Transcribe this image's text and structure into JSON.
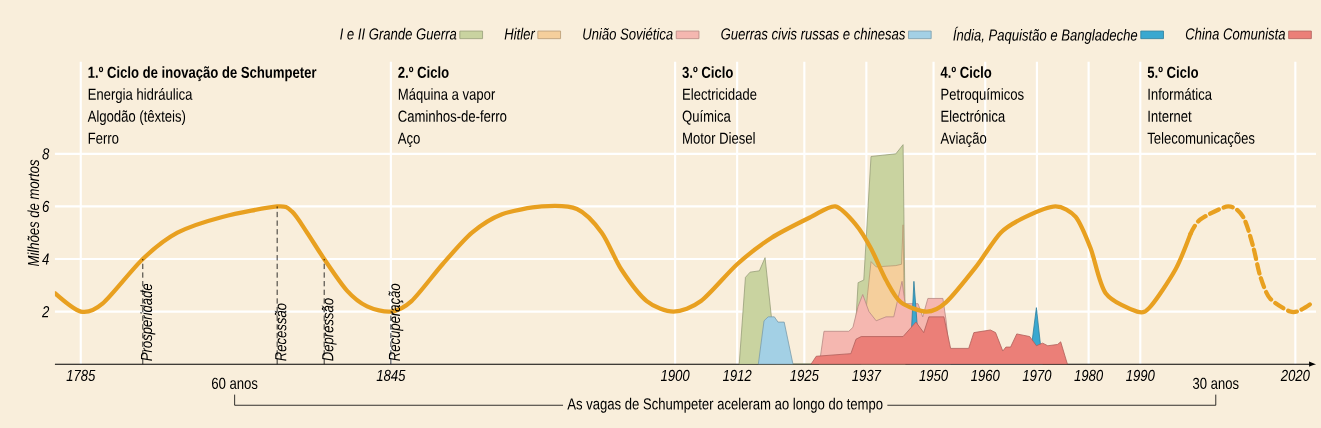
{
  "chart_data": {
    "type": "area",
    "ylabel": "Milhões de mortos",
    "xlabel": "As vagas de Schumpeter aceleram ao longo do tempo",
    "xlim": [
      1780,
      2024
    ],
    "ylim": [
      0,
      11.5
    ],
    "xticks": [
      1785,
      1845,
      1900,
      1912,
      1925,
      1937,
      1950,
      1960,
      1970,
      1980,
      1990,
      2020
    ],
    "yticks": [
      2,
      4,
      6,
      8
    ],
    "grid": true,
    "legend": "top right",
    "series": [
      {
        "name": "I e II Grande Guerra",
        "color": "#c9d3a0",
        "x": [
          1912.4,
          1913.6,
          1914.5,
          1916.3,
          1917.4,
          1919.6,
          1934.5,
          1935.4,
          1936.5,
          1937.9,
          1940.2,
          1942.7,
          1944.1,
          1944.6
        ],
        "values": [
          0,
          3.3,
          3.5,
          3.55,
          4.05,
          0,
          0,
          3.1,
          3.2,
          7.9,
          7.95,
          8.0,
          8.35,
          0
        ]
      },
      {
        "name": "Hitler",
        "color": "#f5cf9c",
        "x": [
          1936,
          1937.2,
          1937.9,
          1938.9,
          1942.7,
          1943.8,
          1944.1,
          1944.5
        ],
        "values": [
          0,
          2.6,
          3.9,
          3.7,
          3.75,
          3.8,
          5.3,
          0
        ]
      },
      {
        "name": "União Soviética",
        "color": "#f5b7b0",
        "x": [
          1927.9,
          1928.8,
          1933.6,
          1934.4,
          1935.4,
          1936.3,
          1937.5,
          1938.9,
          1940.8,
          1942.3,
          1943.9,
          1944.5,
          1947,
          1947.9,
          1948.9,
          1951.8,
          1952.4,
          1953.3
        ],
        "values": [
          0,
          1.25,
          1.25,
          1.4,
          2.2,
          2.65,
          2.0,
          1.65,
          1.8,
          1.8,
          3.15,
          2.3,
          2.3,
          1.8,
          2.5,
          2.5,
          1.7,
          0
        ]
      },
      {
        "name": "Guerras civis russas e chinesas",
        "color": "#a3d0e5",
        "x": [
          1916.1,
          1917.2,
          1918,
          1919.2,
          1919.9,
          1921.1,
          1922.8
        ],
        "values": [
          0,
          1.65,
          1.8,
          1.8,
          1.6,
          1.6,
          0
        ]
      },
      {
        "name": "Índia, Paquistão e Bangladeche",
        "color": "#3aa8d0",
        "x": [
          1945.4,
          1946.2,
          1947.4,
          1968.5,
          1969.9,
          1971.1
        ],
        "values": [
          0,
          3.15,
          0,
          0,
          2.15,
          0
        ]
      },
      {
        "name": "China Comunista",
        "color": "#eb7f78",
        "x": [
          1926.3,
          1927.3,
          1934,
          1935,
          1936,
          1944.1,
          1946.6,
          1948.1,
          1949.1,
          1952,
          1953.3,
          1956.8,
          1957.8,
          1961,
          1962,
          1963.4,
          1964,
          1964.9,
          1966.1,
          1968.6,
          1969.9,
          1971.1,
          1972.1,
          1974,
          1974.6,
          1975.9
        ],
        "values": [
          0,
          0.3,
          0.4,
          0.95,
          1.05,
          1.05,
          1.6,
          1.2,
          1.8,
          1.8,
          0.6,
          0.6,
          1.2,
          1.3,
          1.2,
          0.5,
          0.65,
          0.65,
          1.15,
          1.05,
          0.7,
          0.8,
          0.7,
          0.75,
          0.85,
          0
        ]
      },
      {
        "type": "line",
        "color": "#e8a020",
        "line_style": "solid",
        "x": [
          1780,
          1785,
          1789.2,
          1797,
          1803.7,
          1812.4,
          1823,
          1825.9,
          1828.8,
          1832.1,
          1836.5,
          1840.4,
          1845,
          1849,
          1855,
          1860.7,
          1866.5,
          1874.2,
          1881,
          1885.8,
          1889.6,
          1894.5,
          1899.7,
          1905,
          1912,
          1918.6,
          1926.3,
          1931,
          1935,
          1937.9,
          1940.8,
          1943.7,
          1948.7,
          1952.4,
          1958.2,
          1963,
          1967.8,
          1973.6,
          1977.5,
          1980.4,
          1983.3,
          1989.4,
          1992,
          1996.8,
          1999.7
        ],
        "values": [
          2.7,
          2.0,
          2.3,
          4.0,
          5.0,
          5.6,
          6.0,
          5.8,
          5.0,
          4.0,
          2.8,
          2.2,
          2.0,
          2.4,
          3.8,
          5.0,
          5.7,
          6.0,
          5.9,
          5.0,
          3.6,
          2.4,
          2.0,
          2.4,
          3.8,
          4.8,
          5.6,
          6.0,
          5.3,
          4.4,
          3.2,
          2.35,
          2.0,
          2.35,
          3.7,
          5.0,
          5.6,
          6.0,
          5.6,
          4.4,
          2.7,
          2.0,
          2.2,
          3.6,
          4.95
        ]
      },
      {
        "type": "line",
        "color": "#e8a020",
        "line_style": "dashed",
        "x": [
          1999.7,
          2001.6,
          2007,
          2009.9,
          2011.8,
          2013.2,
          2015.1,
          2019,
          2020.9,
          2023.4
        ],
        "values": [
          4.95,
          5.5,
          6.0,
          5.6,
          4.5,
          3.35,
          2.5,
          2.0,
          2.05,
          2.35
        ]
      }
    ],
    "annotations": [
      "1.º Ciclo de inovação de Schumpeter",
      "Energia hidráulica",
      "Algodão (têxteis)",
      "Ferro",
      "2.º Ciclo",
      "Máquina a vapor",
      "Caminhos-de-ferro",
      "Aço",
      "3.º Ciclo",
      "Electricidade",
      "Química",
      "Motor Diesel",
      "4.º Ciclo",
      "Petroquímicos",
      "Electrónica",
      "Aviação",
      "5.º Ciclo",
      "Informática",
      "Internet",
      "Telecomunicações",
      {
        "text": "Prosperidade",
        "x": 1797,
        "y": 4.0
      },
      {
        "text": "Recessão",
        "x": 1823,
        "y": 6.0
      },
      {
        "text": "Depressão",
        "x": 1832.1,
        "y": 4.0
      },
      {
        "text": "Recuperação",
        "x": 1845,
        "y": 2.0
      },
      "60 anos",
      "30 anos"
    ]
  }
}
